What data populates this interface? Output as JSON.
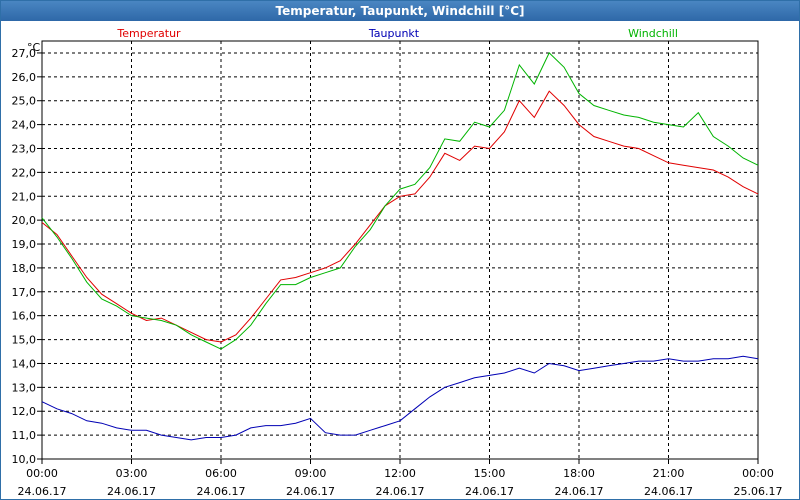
{
  "window": {
    "title": "Temperatur, Taupunkt, Windchill [°C]"
  },
  "chart_data": {
    "type": "line",
    "title": "Temperatur, Taupunkt, Windchill [°C]",
    "unit_label": "°C",
    "ylim": [
      10.0,
      27.5
    ],
    "xlim": [
      0,
      24
    ],
    "grid": true,
    "y_ticks": [
      "10,0",
      "11,0",
      "12,0",
      "13,0",
      "14,0",
      "15,0",
      "16,0",
      "17,0",
      "18,0",
      "19,0",
      "20,0",
      "21,0",
      "22,0",
      "23,0",
      "24,0",
      "25,0",
      "26,0",
      "27,0"
    ],
    "x_ticks": [
      {
        "time": "00:00",
        "date": "24.06.17"
      },
      {
        "time": "03:00",
        "date": "24.06.17"
      },
      {
        "time": "06:00",
        "date": "24.06.17"
      },
      {
        "time": "09:00",
        "date": "24.06.17"
      },
      {
        "time": "12:00",
        "date": "24.06.17"
      },
      {
        "time": "15:00",
        "date": "24.06.17"
      },
      {
        "time": "18:00",
        "date": "24.06.17"
      },
      {
        "time": "21:00",
        "date": "24.06.17"
      },
      {
        "time": "00:00",
        "date": "25.06.17"
      }
    ],
    "series": [
      {
        "name": "Temperatur",
        "color": "#e00000",
        "legend_position": "left",
        "x": [
          0,
          0.5,
          1,
          1.5,
          2,
          2.5,
          3,
          3.5,
          4,
          4.5,
          5,
          5.5,
          6,
          6.5,
          7,
          7.5,
          8,
          8.5,
          9,
          9.5,
          10,
          10.5,
          11,
          11.5,
          12,
          12.5,
          13,
          13.5,
          14,
          14.5,
          15,
          15.5,
          16,
          16.5,
          17,
          17.5,
          18,
          18.5,
          19,
          19.5,
          20,
          20.5,
          21,
          21.5,
          22,
          22.5,
          23,
          23.5,
          24
        ],
        "values": [
          19.9,
          19.4,
          18.5,
          17.6,
          16.9,
          16.5,
          16.1,
          15.8,
          15.9,
          15.6,
          15.3,
          15.0,
          14.9,
          15.2,
          15.9,
          16.7,
          17.5,
          17.6,
          17.8,
          18.0,
          18.3,
          19.0,
          19.8,
          20.6,
          21.0,
          21.1,
          21.8,
          22.8,
          22.5,
          23.1,
          23.0,
          23.7,
          25.0,
          24.3,
          25.4,
          24.8,
          24.0,
          23.5,
          23.3,
          23.1,
          23.0,
          22.7,
          22.4,
          22.3,
          22.2,
          22.1,
          21.8,
          21.4,
          21.1
        ]
      },
      {
        "name": "Taupunkt",
        "color": "#0000b4",
        "legend_position": "center",
        "x": [
          0,
          0.5,
          1,
          1.5,
          2,
          2.5,
          3,
          3.5,
          4,
          4.5,
          5,
          5.5,
          6,
          6.5,
          7,
          7.5,
          8,
          8.5,
          9,
          9.5,
          10,
          10.5,
          11,
          11.5,
          12,
          12.5,
          13,
          13.5,
          14,
          14.5,
          15,
          15.5,
          16,
          16.5,
          17,
          17.5,
          18,
          18.5,
          19,
          19.5,
          20,
          20.5,
          21,
          21.5,
          22,
          22.5,
          23,
          23.5,
          24
        ],
        "values": [
          12.4,
          12.1,
          11.9,
          11.6,
          11.5,
          11.3,
          11.2,
          11.2,
          11.0,
          10.9,
          10.8,
          10.9,
          10.9,
          11.0,
          11.3,
          11.4,
          11.4,
          11.5,
          11.7,
          11.1,
          11.0,
          11.0,
          11.2,
          11.4,
          11.6,
          12.1,
          12.6,
          13.0,
          13.2,
          13.4,
          13.5,
          13.6,
          13.8,
          13.6,
          14.0,
          13.9,
          13.7,
          13.8,
          13.9,
          14.0,
          14.1,
          14.1,
          14.2,
          14.1,
          14.1,
          14.2,
          14.2,
          14.3,
          14.2
        ]
      },
      {
        "name": "Windchill",
        "color": "#00b400",
        "legend_position": "right",
        "x": [
          0,
          0.5,
          1,
          1.5,
          2,
          2.5,
          3,
          3.5,
          4,
          4.5,
          5,
          5.5,
          6,
          6.5,
          7,
          7.5,
          8,
          8.5,
          9,
          9.5,
          10,
          10.5,
          11,
          11.5,
          12,
          12.5,
          13,
          13.5,
          14,
          14.5,
          15,
          15.5,
          16,
          16.5,
          17,
          17.5,
          18,
          18.5,
          19,
          19.5,
          20,
          20.5,
          21,
          21.5,
          22,
          22.5,
          23,
          23.5,
          24
        ],
        "values": [
          20.1,
          19.3,
          18.4,
          17.4,
          16.7,
          16.4,
          16.0,
          15.9,
          15.8,
          15.6,
          15.2,
          14.9,
          14.6,
          15.0,
          15.6,
          16.5,
          17.3,
          17.3,
          17.6,
          17.8,
          18.0,
          18.9,
          19.6,
          20.6,
          21.3,
          21.5,
          22.2,
          23.4,
          23.3,
          24.1,
          23.9,
          24.6,
          26.5,
          25.7,
          27.0,
          26.4,
          25.3,
          24.8,
          24.6,
          24.4,
          24.3,
          24.1,
          24.0,
          23.9,
          24.5,
          23.5,
          23.1,
          22.6,
          22.3
        ]
      }
    ]
  }
}
